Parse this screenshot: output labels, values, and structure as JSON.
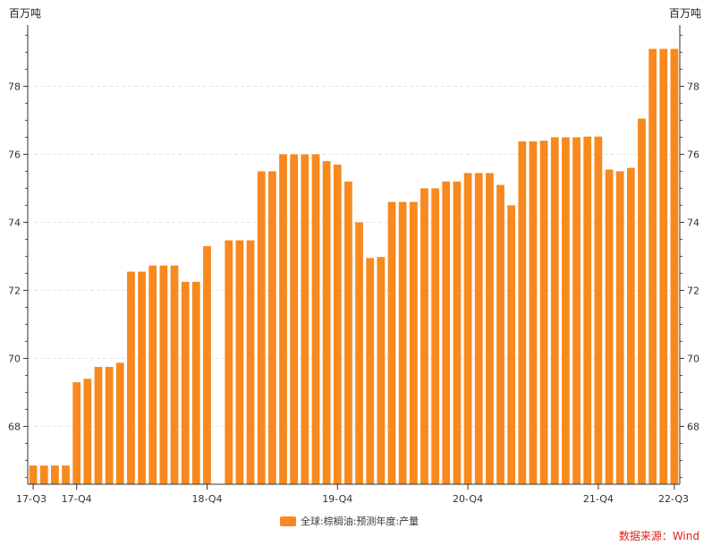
{
  "chart_data": {
    "type": "bar",
    "unit_left": "百万吨",
    "unit_right": "百万吨",
    "ylim": [
      66.3,
      79.8
    ],
    "yticks": [
      68,
      70,
      72,
      74,
      76,
      78
    ],
    "grid": true,
    "series": [
      {
        "name": "全球:棕榈油:预测年度:产量",
        "color": "#f7891e",
        "values": [
          66.85,
          66.85,
          66.85,
          66.85,
          69.3,
          69.4,
          69.75,
          69.75,
          69.87,
          72.55,
          72.55,
          72.73,
          72.73,
          72.73,
          72.25,
          72.25,
          73.3,
          null,
          73.47,
          73.47,
          73.47,
          75.5,
          75.5,
          76.0,
          76.0,
          76.0,
          76.0,
          75.8,
          75.7,
          75.2,
          74.0,
          72.95,
          72.98,
          74.6,
          74.6,
          74.6,
          75.0,
          75.0,
          75.2,
          75.2,
          75.45,
          75.45,
          75.45,
          75.1,
          74.5,
          76.38,
          76.38,
          76.4,
          76.5,
          76.5,
          76.5,
          76.52,
          76.52,
          75.55,
          75.5,
          75.6,
          77.05,
          79.1,
          79.1,
          79.1
        ]
      }
    ],
    "xticks": [
      {
        "label": "17-Q3",
        "index": 0
      },
      {
        "label": "17-Q4",
        "index": 4
      },
      {
        "label": "18-Q4",
        "index": 16
      },
      {
        "label": "19-Q4",
        "index": 28
      },
      {
        "label": "20-Q4",
        "index": 40
      },
      {
        "label": "21-Q4",
        "index": 52
      },
      {
        "label": "22-Q3",
        "index": 59
      }
    ],
    "source": "数据来源：Wind"
  }
}
